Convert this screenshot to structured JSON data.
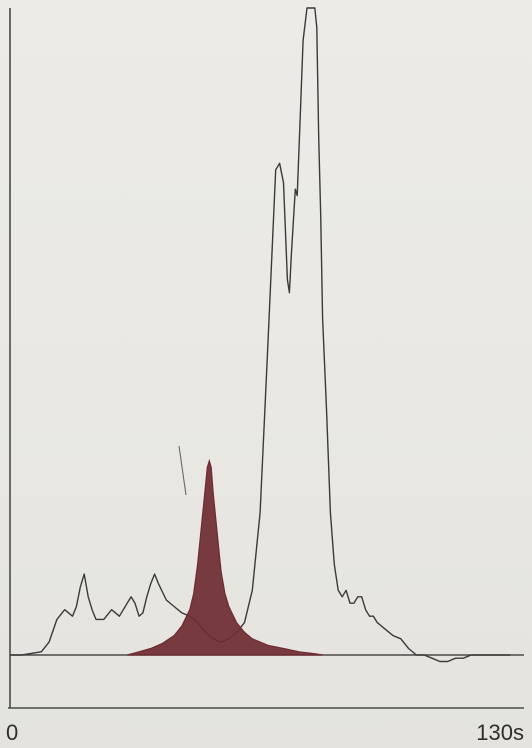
{
  "chart_data": {
    "type": "area",
    "title": "",
    "xlabel": "",
    "ylabel": "",
    "xlim": [
      0,
      130
    ],
    "ylim": [
      0,
      100
    ],
    "x_ticks": [
      {
        "value": 0,
        "label": "0"
      },
      {
        "value": 130,
        "label": "130s"
      }
    ],
    "grid": false,
    "series": [
      {
        "style": "outline",
        "color": "#3a3a3a",
        "x": [
          0,
          3,
          8,
          10,
          12,
          14,
          16,
          17,
          18,
          19,
          20,
          21,
          22,
          24,
          26,
          28,
          30,
          31,
          32,
          33,
          34,
          35,
          36,
          37,
          38,
          40,
          42,
          44,
          46,
          48,
          50,
          52,
          54,
          56,
          58,
          60,
          62,
          64,
          66,
          68,
          69,
          70,
          71,
          71.5,
          72,
          73,
          73.5,
          74,
          75,
          76,
          77,
          78,
          78.5,
          79,
          79.5,
          80,
          81,
          82,
          83,
          84,
          85,
          86,
          87,
          88,
          89,
          90,
          91,
          92,
          93,
          94,
          96,
          98,
          100,
          102,
          104,
          106,
          108,
          110,
          112,
          114,
          116,
          118,
          120,
          125,
          128
        ],
        "y": [
          0,
          0,
          0.5,
          2,
          5.5,
          7,
          6,
          7.5,
          10.5,
          12.5,
          9,
          7,
          5.5,
          5.5,
          7,
          6,
          8,
          9,
          8,
          6,
          6.5,
          9,
          11,
          12.5,
          11,
          8.5,
          7.5,
          6.5,
          6,
          5,
          3.5,
          2.5,
          2,
          2.5,
          3.5,
          5,
          10,
          22,
          48,
          75,
          76,
          73,
          58,
          56,
          62,
          72,
          71,
          79,
          95,
          100,
          100,
          100,
          97,
          80,
          68,
          52,
          38,
          22,
          14,
          10,
          9,
          10,
          8,
          8,
          9,
          9,
          7,
          6,
          6,
          5,
          4,
          3,
          2.5,
          1,
          0,
          0,
          -0.5,
          -1,
          -1,
          -0.5,
          -0.5,
          0,
          0,
          0,
          0
        ]
      },
      {
        "style": "filled",
        "color": "#6e2b31",
        "x": [
          30,
          33,
          36,
          39,
          42,
          44,
          46,
          47,
          48,
          49,
          50,
          50.5,
          51,
          51.5,
          52,
          53,
          54,
          55,
          56,
          58,
          60,
          62,
          64,
          66,
          70,
          74,
          78,
          80
        ],
        "y": [
          0,
          0.5,
          1,
          1.8,
          3,
          4.5,
          7,
          9.5,
          14,
          20,
          26,
          29,
          30,
          29,
          25,
          19,
          13,
          9.5,
          7.5,
          5,
          3.5,
          2.5,
          2,
          1.5,
          1,
          0.5,
          0.2,
          0
        ]
      }
    ]
  }
}
